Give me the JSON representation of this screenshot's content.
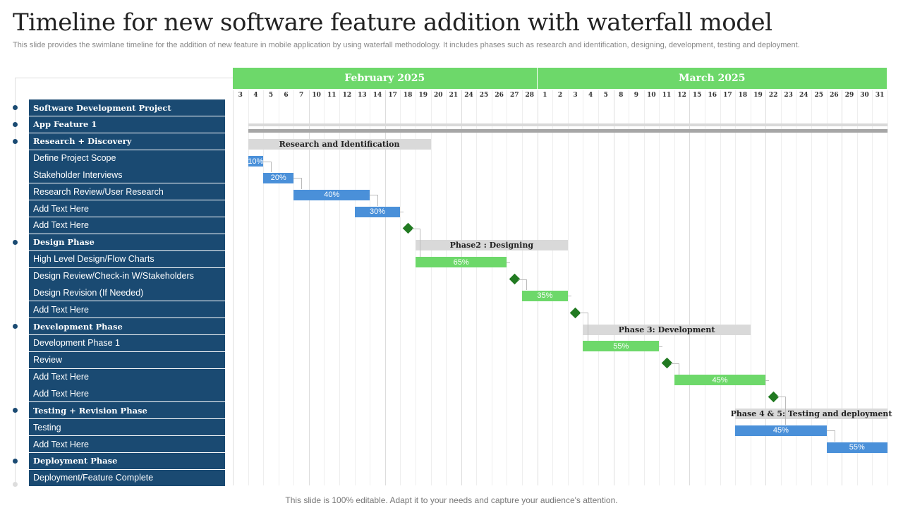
{
  "title": "Timeline for new software feature addition with waterfall model",
  "subtitle": "This slide provides the swimlane timeline for the addition of new feature in mobile application by using waterfall methodology. It includes phases such as research and identification, designing, development, testing and deployment.",
  "footer": "This slide is 100% editable. Adapt it to your needs and capture your audience's attention.",
  "colors": {
    "header_green": "#6dd86a",
    "row_navy": "#1a4a72",
    "task_blue": "#4a90d9",
    "task_green": "#6dd86a",
    "milestone": "#217a21",
    "phase_gray": "#d9d9d9"
  },
  "months": [
    {
      "label": "February 2025",
      "key": "Feb",
      "days": [
        "3",
        "4",
        "5",
        "6",
        "7",
        "10",
        "11",
        "12",
        "13",
        "14",
        "17",
        "18",
        "19",
        "20",
        "21",
        "24",
        "25",
        "26",
        "27",
        "28"
      ]
    },
    {
      "label": "March 2025",
      "key": "Mar",
      "days": [
        "1",
        "2",
        "3",
        "4",
        "5",
        "8",
        "9",
        "10",
        "11",
        "12",
        "15",
        "16",
        "17",
        "18",
        "19",
        "22",
        "23",
        "24",
        "25",
        "26",
        "29",
        "30",
        "31"
      ]
    }
  ],
  "rows": [
    {
      "label": "Software Development Project",
      "header": true
    },
    {
      "label": "App Feature 1",
      "header": true
    },
    {
      "label": "Research + Discovery",
      "header": true
    },
    {
      "label": "Define Project Scope"
    },
    {
      "label": "Stakeholder Interviews"
    },
    {
      "label": "Research Review/User Research"
    },
    {
      "label": "Add Text Here"
    },
    {
      "label": "Add Text Here"
    },
    {
      "label": "Design Phase",
      "header": true
    },
    {
      "label": "High Level Design/Flow Charts"
    },
    {
      "label": "Design Review/Check-in W/Stakeholders"
    },
    {
      "label": "Design Revision (If Needed)"
    },
    {
      "label": "Add Text Here"
    },
    {
      "label": "Development Phase",
      "header": true
    },
    {
      "label": "Development Phase 1"
    },
    {
      "label": "Review"
    },
    {
      "label": "Add Text Here"
    },
    {
      "label": "Add Text Here"
    },
    {
      "label": "Testing + Revision Phase",
      "header": true
    },
    {
      "label": "Testing"
    },
    {
      "label": "Add Text Here"
    },
    {
      "label": "Deployment Phase",
      "header": true
    },
    {
      "label": "Deployment/Feature Complete"
    }
  ],
  "items": [
    {
      "row": 2,
      "type": "phase",
      "label": "Research and Identification",
      "start": "Feb 4",
      "end": "Feb 19"
    },
    {
      "row": 3,
      "type": "task",
      "color": "blue",
      "label": "10%",
      "start": "Feb 4",
      "end": "Feb 4"
    },
    {
      "row": 4,
      "type": "task",
      "color": "blue",
      "label": "20%",
      "start": "Feb 5",
      "end": "Feb 6"
    },
    {
      "row": 5,
      "type": "task",
      "color": "blue",
      "label": "40%",
      "start": "Feb 7",
      "end": "Feb 13"
    },
    {
      "row": 6,
      "type": "task",
      "color": "blue",
      "label": "30%",
      "start": "Feb 13",
      "end": "Feb 17"
    },
    {
      "row": 7,
      "type": "milestone",
      "start": "Feb 18"
    },
    {
      "row": 8,
      "type": "phase",
      "label": "Phase2 : Designing",
      "start": "Feb 19",
      "end": "Mar 2"
    },
    {
      "row": 9,
      "type": "task",
      "color": "green",
      "label": "65%",
      "start": "Feb 19",
      "end": "Feb 26"
    },
    {
      "row": 10,
      "type": "milestone",
      "start": "Feb 27"
    },
    {
      "row": 11,
      "type": "task",
      "color": "green",
      "label": "35%",
      "start": "Feb 28",
      "end": "Mar 2"
    },
    {
      "row": 12,
      "type": "milestone",
      "start": "Mar 3"
    },
    {
      "row": 13,
      "type": "phase",
      "label": "Phase 3: Development",
      "start": "Mar 4",
      "end": "Mar 18"
    },
    {
      "row": 14,
      "type": "task",
      "color": "green",
      "label": "55%",
      "start": "Mar 4",
      "end": "Mar 10"
    },
    {
      "row": 15,
      "type": "milestone",
      "start": "Mar 11"
    },
    {
      "row": 16,
      "type": "task",
      "color": "green",
      "label": "45%",
      "start": "Mar 12",
      "end": "Mar 19"
    },
    {
      "row": 17,
      "type": "milestone",
      "start": "Mar 22"
    },
    {
      "row": 18,
      "type": "phase",
      "label": "Phase 4 & 5: Testing and deployment",
      "start": "Mar 18",
      "end": "Mar 31"
    },
    {
      "row": 19,
      "type": "task",
      "color": "blue",
      "label": "45%",
      "start": "Mar 18",
      "end": "Mar 25"
    },
    {
      "row": 20,
      "type": "task",
      "color": "blue",
      "label": "55%",
      "start": "Mar 26",
      "end": "Mar 31"
    }
  ]
}
